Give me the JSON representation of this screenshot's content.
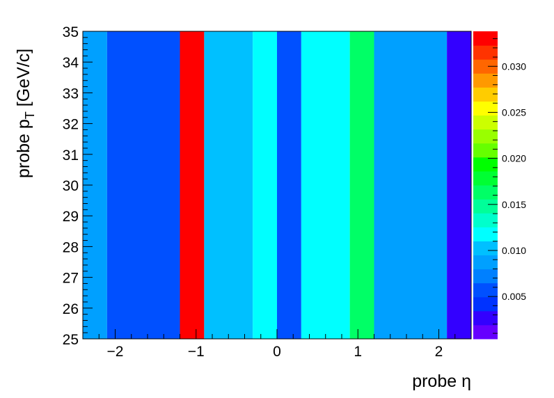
{
  "chart_data": {
    "type": "heatmap",
    "title": "",
    "xlabel": "probe η",
    "ylabel_main": "probe p",
    "ylabel_sub": "T",
    "ylabel_unit": "[GeV/c]",
    "xlim": [
      -2.4,
      2.4
    ],
    "ylim": [
      25,
      35
    ],
    "x_ticks": [
      {
        "value": -2,
        "label": "−2"
      },
      {
        "value": -1,
        "label": "−1"
      },
      {
        "value": 0,
        "label": "0"
      },
      {
        "value": 1,
        "label": "1"
      },
      {
        "value": 2,
        "label": "2"
      }
    ],
    "y_ticks": [
      {
        "value": 25,
        "label": "25"
      },
      {
        "value": 26,
        "label": "26"
      },
      {
        "value": 27,
        "label": "27"
      },
      {
        "value": 28,
        "label": "28"
      },
      {
        "value": 29,
        "label": "29"
      },
      {
        "value": 30,
        "label": "30"
      },
      {
        "value": 31,
        "label": "31"
      },
      {
        "value": 32,
        "label": "32"
      },
      {
        "value": 33,
        "label": "33"
      },
      {
        "value": 34,
        "label": "34"
      },
      {
        "value": 35,
        "label": "35"
      }
    ],
    "eta_bin_edges": [
      -2.4,
      -2.1,
      -1.2,
      -0.9,
      -0.3,
      0,
      0.3,
      0.9,
      1.2,
      2.1,
      2.4
    ],
    "pt_bin_edges": [
      25,
      35
    ],
    "values": [
      0.0085,
      0.005,
      0.034,
      0.0105,
      0.0125,
      0.0055,
      0.0125,
      0.0165,
      0.0085,
      0.002
    ],
    "zlim": [
      0.0004,
      0.0338
    ],
    "z_ticks": [
      {
        "value": 0.005,
        "label": "0.005"
      },
      {
        "value": 0.01,
        "label": "0.010"
      },
      {
        "value": 0.015,
        "label": "0.015"
      },
      {
        "value": 0.02,
        "label": "0.020"
      },
      {
        "value": 0.025,
        "label": "0.025"
      },
      {
        "value": 0.03,
        "label": "0.030"
      }
    ],
    "palette": [
      "#6600ff",
      "#3300ff",
      "#0033ff",
      "#0050ff",
      "#0080ff",
      "#00a0ff",
      "#00c0ff",
      "#00ffff",
      "#00ffcc",
      "#00ff99",
      "#00ff66",
      "#00ff33",
      "#00ff00",
      "#66ff00",
      "#99ff00",
      "#ccff00",
      "#ffff00",
      "#ffcc00",
      "#ff9900",
      "#ff6600",
      "#ff3300",
      "#ff0000"
    ]
  }
}
